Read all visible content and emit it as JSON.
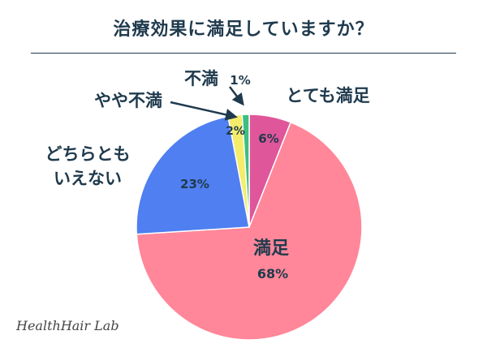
{
  "title": "治療効果に満足していますか？",
  "brand": "HealthHair Lab",
  "chart_data": {
    "type": "pie",
    "title": "治療効果に満足していますか？",
    "start": "top",
    "direction": "clockwise",
    "slices": [
      {
        "label": "とても満足",
        "value": 6,
        "display": "6%",
        "color": "#e0569a"
      },
      {
        "label": "満足",
        "value": 68,
        "display": "68%",
        "color": "#ff8799"
      },
      {
        "label": "どちらとも\nいえない",
        "value": 23,
        "display": "23%",
        "color": "#4f7ff0"
      },
      {
        "label": "やや不満",
        "value": 2,
        "display": "2%",
        "color": "#f5ec6a"
      },
      {
        "label": "不満",
        "value": 1,
        "display": "1%",
        "color": "#3dbf7f"
      }
    ]
  }
}
